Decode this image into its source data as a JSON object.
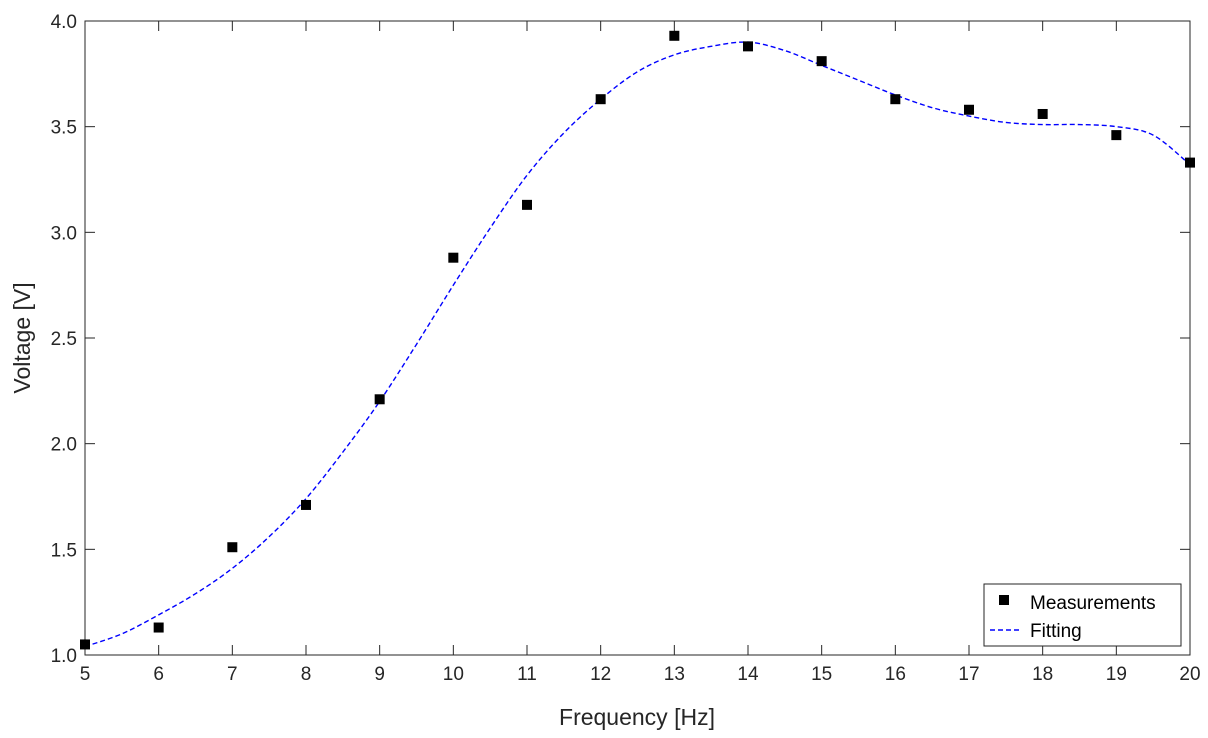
{
  "chart_data": {
    "type": "scatter",
    "title": "",
    "xlabel": "Frequency [Hz]",
    "ylabel": "Voltage [V]",
    "xlim": [
      5,
      20
    ],
    "ylim": [
      1.0,
      4.0
    ],
    "xticks": [
      5,
      6,
      7,
      8,
      9,
      10,
      11,
      12,
      13,
      14,
      15,
      16,
      17,
      18,
      19,
      20
    ],
    "xtick_labels": [
      "5",
      "6",
      "7",
      "8",
      "9",
      "10",
      "11",
      "12",
      "13",
      "14",
      "15",
      "16",
      "17",
      "18",
      "19",
      "20"
    ],
    "yticks": [
      1.0,
      1.5,
      2.0,
      2.5,
      3.0,
      3.5,
      4.0
    ],
    "ytick_labels": [
      "1.0",
      "1.5",
      "2.0",
      "2.5",
      "3.0",
      "3.5",
      "4.0"
    ],
    "grid": false,
    "legend_position": "bottom-right",
    "series": [
      {
        "name": "Measurements",
        "kind": "markers",
        "marker": "square",
        "color": "#000000",
        "x": [
          5,
          6,
          7,
          8,
          9,
          10,
          11,
          12,
          13,
          14,
          15,
          16,
          17,
          18,
          19,
          20
        ],
        "y": [
          1.05,
          1.13,
          1.51,
          1.71,
          2.21,
          2.88,
          3.13,
          3.63,
          3.93,
          3.88,
          3.81,
          3.63,
          3.58,
          3.56,
          3.46,
          3.33
        ]
      },
      {
        "name": "Fitting",
        "kind": "line",
        "line_style": "dashed",
        "color": "#0000ff",
        "x": [
          5,
          5.5,
          6,
          6.5,
          7,
          7.5,
          8,
          8.5,
          9,
          9.5,
          10,
          10.5,
          11,
          11.5,
          12,
          12.5,
          13,
          13.5,
          14,
          14.5,
          15,
          15.5,
          16,
          16.5,
          17,
          17.5,
          18,
          18.5,
          19,
          19.5,
          20
        ],
        "y": [
          1.04,
          1.1,
          1.19,
          1.29,
          1.41,
          1.56,
          1.74,
          1.96,
          2.2,
          2.47,
          2.75,
          3.02,
          3.27,
          3.47,
          3.63,
          3.76,
          3.84,
          3.88,
          3.9,
          3.86,
          3.79,
          3.72,
          3.65,
          3.59,
          3.55,
          3.52,
          3.51,
          3.51,
          3.5,
          3.46,
          3.32
        ]
      }
    ]
  }
}
